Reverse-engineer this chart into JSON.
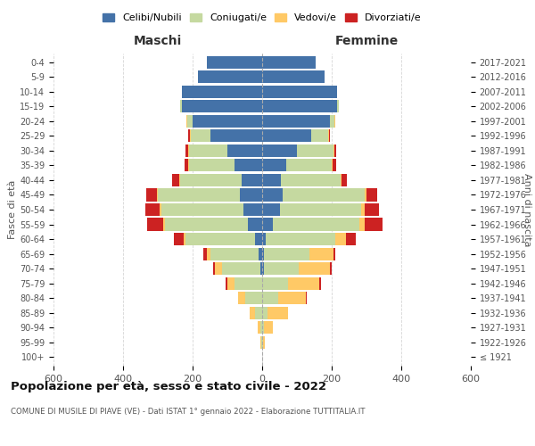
{
  "age_groups": [
    "100+",
    "95-99",
    "90-94",
    "85-89",
    "80-84",
    "75-79",
    "70-74",
    "65-69",
    "60-64",
    "55-59",
    "50-54",
    "45-49",
    "40-44",
    "35-39",
    "30-34",
    "25-29",
    "20-24",
    "15-19",
    "10-14",
    "5-9",
    "0-4"
  ],
  "birth_years": [
    "≤ 1921",
    "1922-1926",
    "1927-1931",
    "1932-1936",
    "1937-1941",
    "1942-1946",
    "1947-1951",
    "1952-1956",
    "1957-1961",
    "1962-1966",
    "1967-1971",
    "1972-1976",
    "1977-1981",
    "1982-1986",
    "1987-1991",
    "1992-1996",
    "1997-2001",
    "2002-2006",
    "2007-2011",
    "2012-2016",
    "2017-2021"
  ],
  "male": {
    "celibi": [
      0,
      0,
      0,
      0,
      0,
      0,
      5,
      10,
      20,
      40,
      55,
      65,
      60,
      80,
      100,
      150,
      200,
      230,
      230,
      185,
      160
    ],
    "coniugati": [
      0,
      2,
      5,
      20,
      50,
      80,
      110,
      140,
      200,
      240,
      235,
      235,
      175,
      130,
      110,
      55,
      15,
      5,
      0,
      0,
      0
    ],
    "vedovi": [
      0,
      2,
      8,
      15,
      20,
      20,
      20,
      10,
      5,
      5,
      5,
      3,
      3,
      2,
      2,
      2,
      2,
      0,
      0,
      0,
      0
    ],
    "divorziati": [
      0,
      0,
      0,
      0,
      0,
      5,
      5,
      10,
      30,
      45,
      40,
      30,
      20,
      10,
      8,
      5,
      2,
      0,
      0,
      0,
      0
    ]
  },
  "female": {
    "nubili": [
      0,
      0,
      0,
      0,
      0,
      0,
      5,
      5,
      10,
      30,
      50,
      60,
      55,
      70,
      100,
      140,
      195,
      215,
      215,
      180,
      155
    ],
    "coniugate": [
      0,
      2,
      5,
      15,
      45,
      75,
      100,
      130,
      200,
      250,
      235,
      235,
      170,
      130,
      105,
      50,
      12,
      5,
      0,
      0,
      0
    ],
    "vedove": [
      1,
      5,
      25,
      60,
      80,
      90,
      90,
      70,
      30,
      15,
      10,
      5,
      3,
      2,
      2,
      2,
      2,
      0,
      0,
      0,
      0
    ],
    "divorziate": [
      0,
      0,
      0,
      0,
      3,
      5,
      5,
      5,
      30,
      50,
      40,
      30,
      15,
      10,
      5,
      3,
      2,
      0,
      0,
      0,
      0
    ]
  },
  "colors": {
    "celibi": "#4472a8",
    "coniugati": "#c5d9a0",
    "vedovi": "#ffc966",
    "divorziati": "#cc2222"
  },
  "xlim": 600,
  "title": "Popolazione per età, sesso e stato civile - 2022",
  "subtitle": "COMUNE DI MUSILE DI PIAVE (VE) - Dati ISTAT 1° gennaio 2022 - Elaborazione TUTTITALIA.IT",
  "xlabel_left": "Maschi",
  "xlabel_right": "Femmine",
  "ylabel_left": "Fasce di età",
  "ylabel_right": "Anni di nascita",
  "legend_labels": [
    "Celibi/Nubili",
    "Coniugati/e",
    "Vedovi/e",
    "Divorziati/e"
  ],
  "background_color": "#ffffff",
  "grid_color": "#cccccc"
}
